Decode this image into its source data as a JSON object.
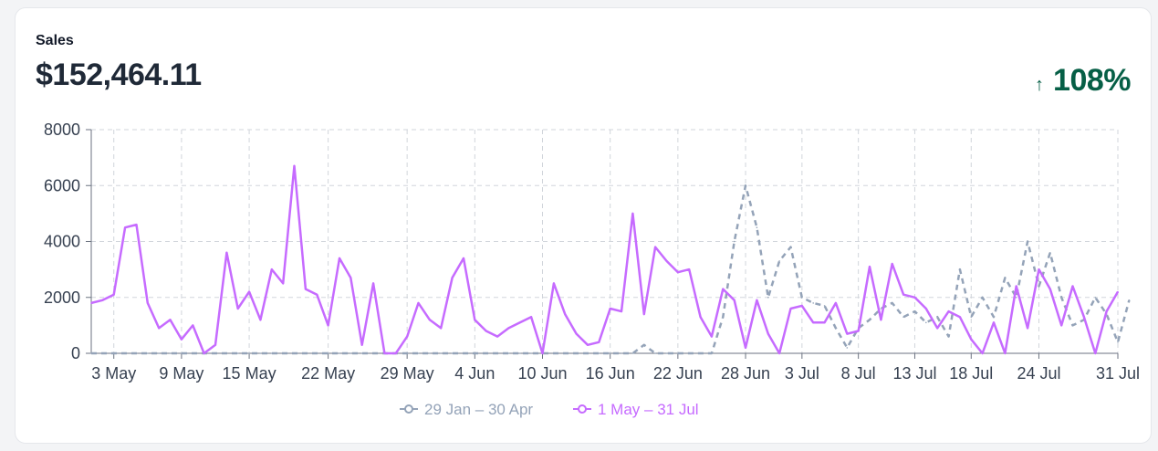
{
  "card": {
    "label": "Sales",
    "value": "$152,464.11",
    "growth": "108%",
    "growth_arrow": "↑"
  },
  "colors": {
    "current": "#c66bff",
    "previous": "#94a3b8",
    "growth": "#065f46",
    "grid": "#d1d5db"
  },
  "chart_data": {
    "type": "line",
    "ylim": [
      0,
      8000
    ],
    "yticks": [
      0,
      2000,
      4000,
      6000,
      8000
    ],
    "xlim": [
      0,
      91
    ],
    "xticks": [
      {
        "day": 2,
        "label": "3 May"
      },
      {
        "day": 8,
        "label": "9 May"
      },
      {
        "day": 14,
        "label": "15 May"
      },
      {
        "day": 21,
        "label": "22 May"
      },
      {
        "day": 28,
        "label": "29 May"
      },
      {
        "day": 34,
        "label": "4 Jun"
      },
      {
        "day": 40,
        "label": "10 Jun"
      },
      {
        "day": 46,
        "label": "16 Jun"
      },
      {
        "day": 52,
        "label": "22 Jun"
      },
      {
        "day": 58,
        "label": "28 Jun"
      },
      {
        "day": 63,
        "label": "3 Jul"
      },
      {
        "day": 68,
        "label": "8 Jul"
      },
      {
        "day": 73,
        "label": "13 Jul"
      },
      {
        "day": 78,
        "label": "18 Jul"
      },
      {
        "day": 84,
        "label": "24 Jul"
      },
      {
        "day": 91,
        "label": "31 Jul"
      }
    ],
    "grid": true,
    "legend_position": "bottom-center",
    "series": [
      {
        "name": "29 Jan – 30 Apr",
        "style": "dashed",
        "values": [
          0,
          0,
          0,
          0,
          0,
          0,
          0,
          0,
          0,
          0,
          0,
          0,
          0,
          0,
          0,
          0,
          0,
          0,
          0,
          0,
          0,
          0,
          0,
          0,
          0,
          0,
          0,
          0,
          0,
          0,
          0,
          0,
          0,
          0,
          0,
          0,
          0,
          0,
          0,
          0,
          0,
          0,
          0,
          0,
          0,
          0,
          0,
          0,
          0,
          300,
          0,
          0,
          0,
          0,
          0,
          0,
          1300,
          4000,
          6000,
          4500,
          2000,
          3300,
          3800,
          2000,
          1800,
          1700,
          900,
          200,
          900,
          1200,
          1600,
          1800,
          1300,
          1500,
          1100,
          1300,
          600,
          3000,
          1300,
          2000,
          1300,
          2700,
          2000,
          4000,
          2400,
          3600,
          2000,
          1000,
          1200,
          2000,
          1400,
          400,
          1900
        ]
      },
      {
        "name": "1 May – 31 Jul",
        "style": "solid",
        "values": [
          1800,
          1900,
          2100,
          4500,
          4600,
          1800,
          900,
          1200,
          500,
          1000,
          0,
          300,
          3600,
          1600,
          2200,
          1200,
          3000,
          2500,
          6700,
          2300,
          2100,
          1000,
          3400,
          2700,
          300,
          2500,
          0,
          0,
          600,
          1800,
          1200,
          900,
          2700,
          3400,
          1200,
          800,
          600,
          900,
          1100,
          1300,
          0,
          2500,
          1400,
          700,
          300,
          400,
          1600,
          1500,
          5000,
          1400,
          3800,
          3300,
          2900,
          3000,
          1300,
          600,
          2300,
          1900,
          200,
          1900,
          700,
          0,
          1600,
          1700,
          1100,
          1100,
          1800,
          700,
          800,
          3100,
          1200,
          3200,
          2100,
          2000,
          1600,
          900,
          1500,
          1300,
          500,
          0,
          1100,
          0,
          2400,
          900,
          3000,
          2300,
          1000,
          2400,
          1300,
          0,
          1500,
          2200
        ]
      }
    ]
  }
}
